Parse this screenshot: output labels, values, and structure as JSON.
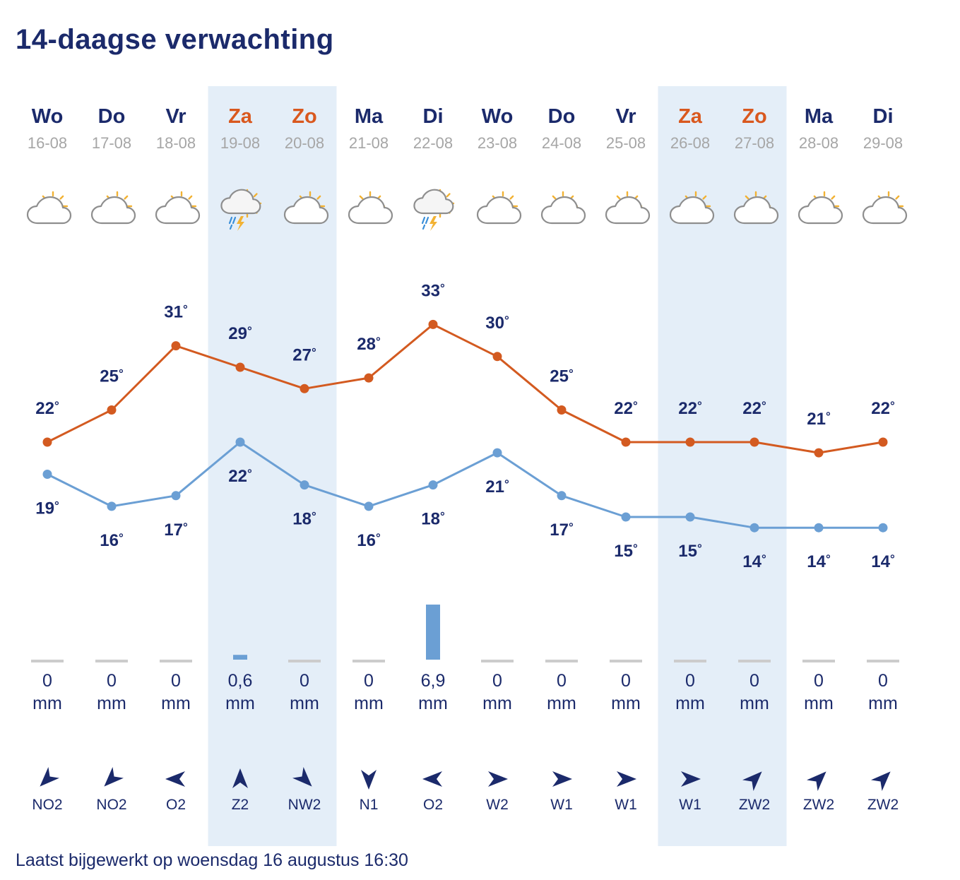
{
  "title": "14-daagse verwachting",
  "footer": "Laatst bijgewerkt op woensdag 16 augustus 16:30",
  "colors": {
    "max_line": "#d35a20",
    "min_line": "#6b9fd4",
    "weekend_band": "#e4eef8",
    "weekend_text": "#d9581e",
    "text": "#1b2a6b",
    "date_text": "#a6a6a6",
    "precip_bar": "#6b9fd4",
    "precip_zero": "#cccccc"
  },
  "chart_data": {
    "type": "line",
    "title": "14-daagse verwachting",
    "degree_symbol": "°",
    "precip_unit": "mm",
    "days": [
      {
        "name": "Wo",
        "date": "16-08",
        "weekend": false,
        "icon": "partly-cloudy-icon",
        "max": 22,
        "min": 19,
        "precip_label": "0",
        "precip": 0,
        "wind": "NO2",
        "wind_dir": 225
      },
      {
        "name": "Do",
        "date": "17-08",
        "weekend": false,
        "icon": "partly-cloudy-icon",
        "max": 25,
        "min": 16,
        "precip_label": "0",
        "precip": 0,
        "wind": "NO2",
        "wind_dir": 225
      },
      {
        "name": "Vr",
        "date": "18-08",
        "weekend": false,
        "icon": "partly-cloudy-icon",
        "max": 31,
        "min": 17,
        "precip_label": "0",
        "precip": 0,
        "wind": "O2",
        "wind_dir": 270
      },
      {
        "name": "Za",
        "date": "19-08",
        "weekend": true,
        "icon": "thunder-shower-icon",
        "max": 29,
        "min": 22,
        "precip_label": "0,6",
        "precip": 0.6,
        "wind": "Z2",
        "wind_dir": 0
      },
      {
        "name": "Zo",
        "date": "20-08",
        "weekend": true,
        "icon": "partly-cloudy-icon",
        "max": 27,
        "min": 18,
        "precip_label": "0",
        "precip": 0,
        "wind": "NW2",
        "wind_dir": 135
      },
      {
        "name": "Ma",
        "date": "21-08",
        "weekend": false,
        "icon": "partly-sunny-icon",
        "max": 28,
        "min": 16,
        "precip_label": "0",
        "precip": 0,
        "wind": "N1",
        "wind_dir": 180
      },
      {
        "name": "Di",
        "date": "22-08",
        "weekend": false,
        "icon": "thunder-shower-icon",
        "max": 33,
        "min": 18,
        "precip_label": "6,9",
        "precip": 6.9,
        "wind": "O2",
        "wind_dir": 270
      },
      {
        "name": "Wo",
        "date": "23-08",
        "weekend": false,
        "icon": "partly-cloudy-icon",
        "max": 30,
        "min": 21,
        "precip_label": "0",
        "precip": 0,
        "wind": "W2",
        "wind_dir": 90
      },
      {
        "name": "Do",
        "date": "24-08",
        "weekend": false,
        "icon": "partly-sunny-icon",
        "max": 25,
        "min": 17,
        "precip_label": "0",
        "precip": 0,
        "wind": "W1",
        "wind_dir": 90
      },
      {
        "name": "Vr",
        "date": "25-08",
        "weekend": false,
        "icon": "partly-sunny-icon",
        "max": 22,
        "min": 15,
        "precip_label": "0",
        "precip": 0,
        "wind": "W1",
        "wind_dir": 90
      },
      {
        "name": "Za",
        "date": "26-08",
        "weekend": true,
        "icon": "partly-cloudy-icon",
        "max": 22,
        "min": 15,
        "precip_label": "0",
        "precip": 0,
        "wind": "W1",
        "wind_dir": 90
      },
      {
        "name": "Zo",
        "date": "27-08",
        "weekend": true,
        "icon": "partly-sunny-icon",
        "max": 22,
        "min": 14,
        "precip_label": "0",
        "precip": 0,
        "wind": "ZW2",
        "wind_dir": 45
      },
      {
        "name": "Ma",
        "date": "28-08",
        "weekend": false,
        "icon": "partly-cloudy-icon",
        "max": 21,
        "min": 14,
        "precip_label": "0",
        "precip": 0,
        "wind": "ZW2",
        "wind_dir": 45
      },
      {
        "name": "Di",
        "date": "29-08",
        "weekend": false,
        "icon": "partly-cloudy-icon",
        "max": 22,
        "min": 14,
        "precip_label": "0",
        "precip": 0,
        "wind": "ZW2",
        "wind_dir": 45
      }
    ],
    "series": [
      {
        "name": "max",
        "values": [
          22,
          25,
          31,
          29,
          27,
          28,
          33,
          30,
          25,
          22,
          22,
          22,
          21,
          22
        ]
      },
      {
        "name": "min",
        "values": [
          19,
          16,
          17,
          22,
          18,
          16,
          18,
          21,
          17,
          15,
          15,
          14,
          14,
          14
        ]
      }
    ],
    "precip_range_mm": [
      0,
      10
    ]
  }
}
